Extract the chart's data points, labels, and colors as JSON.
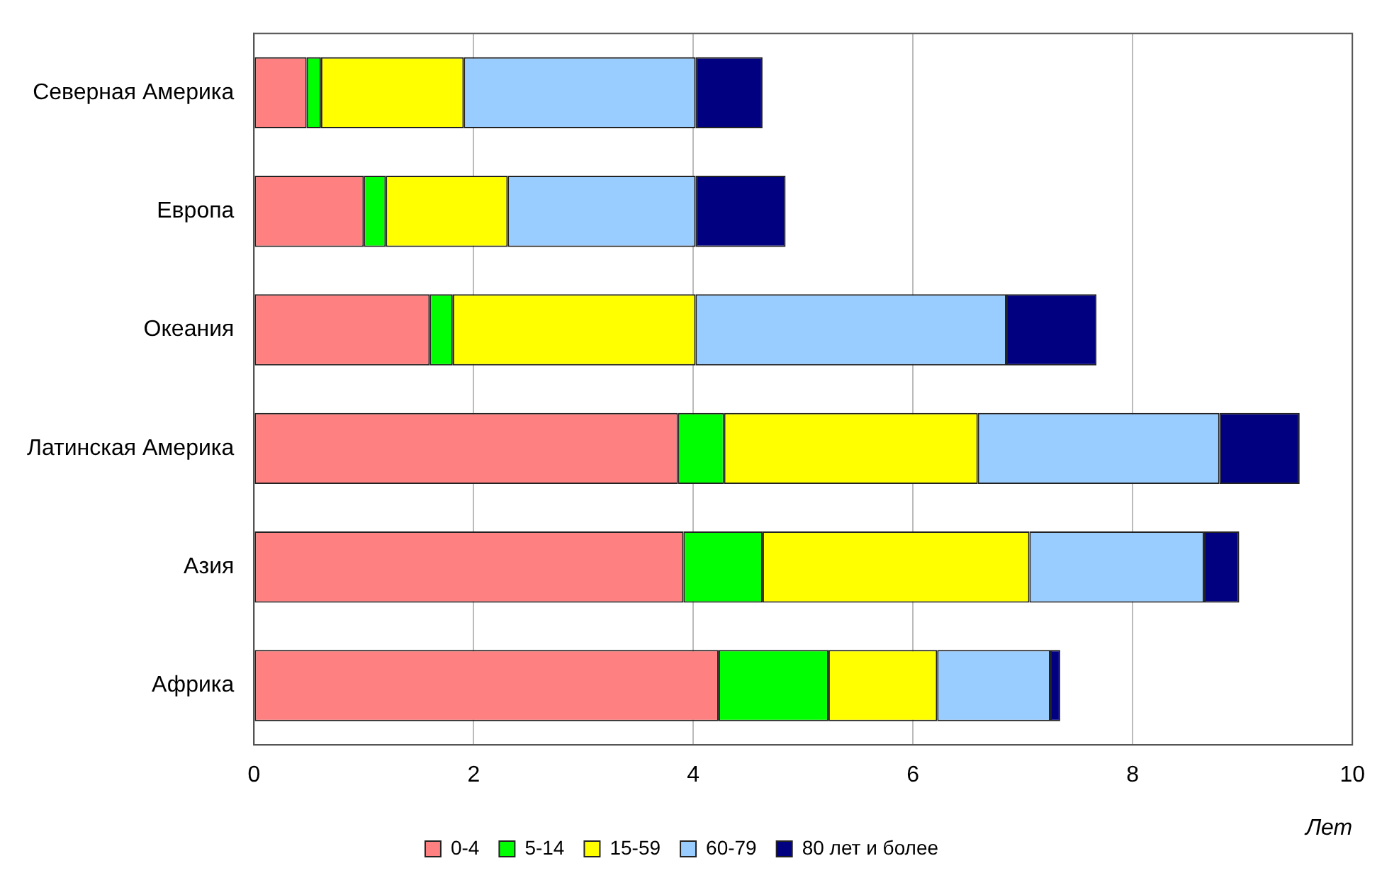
{
  "chart_data": {
    "type": "bar",
    "orientation": "horizontal",
    "stacked": true,
    "xlabel": "Лет",
    "categories": [
      "Северная Америка",
      "Европа",
      "Океания",
      "Латинская Америка",
      "Азия",
      "Африка"
    ],
    "series": [
      {
        "name": "0-4",
        "color": "#ff8080",
        "values": [
          0.48,
          1.0,
          1.6,
          3.86,
          3.91,
          4.23
        ]
      },
      {
        "name": "5-14",
        "color": "#00ff00",
        "values": [
          0.13,
          0.2,
          0.21,
          0.42,
          0.72,
          1.0
        ]
      },
      {
        "name": "15-59",
        "color": "#ffff00",
        "values": [
          1.3,
          1.11,
          2.21,
          2.31,
          2.43,
          0.99
        ]
      },
      {
        "name": "60-79",
        "color": "#99ccff",
        "values": [
          2.11,
          1.71,
          2.83,
          2.2,
          1.59,
          1.03
        ]
      },
      {
        "name": "80 лет и более",
        "color": "#000080",
        "values": [
          0.61,
          0.82,
          0.82,
          0.73,
          0.32,
          0.09
        ]
      }
    ],
    "xlim": [
      0,
      10
    ],
    "xticks": [
      0,
      2,
      4,
      6,
      8,
      10
    ],
    "grid": "x",
    "legend": "bottom"
  }
}
